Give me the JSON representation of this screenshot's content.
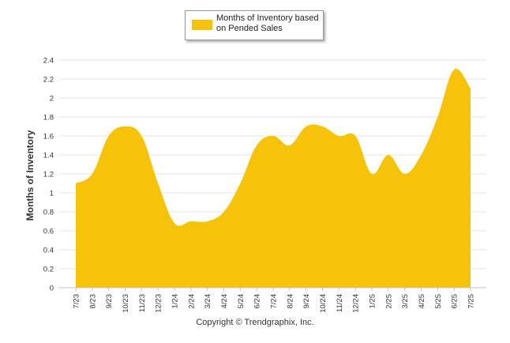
{
  "colors": {
    "series_fill": "#F7C20A",
    "grid": "#E6E6E6",
    "axis_text": "#333333"
  },
  "copyright": "Copyright © Trendgraphix, Inc.",
  "chart_data": {
    "type": "area",
    "title": "",
    "xlabel": "",
    "ylabel": "Months of Inventory",
    "ylim": [
      0,
      2.4
    ],
    "y_ticks": [
      "0",
      "0.2",
      "0.4",
      "0.6",
      "0.8",
      "1",
      "1.2",
      "1.4",
      "1.6",
      "1.8",
      "2",
      "2.2",
      "2.4"
    ],
    "grid": true,
    "legend_position": "top-center",
    "x": [
      "7/23",
      "8/23",
      "9/23",
      "10/23",
      "11/23",
      "12/23",
      "1/24",
      "2/24",
      "3/24",
      "4/24",
      "5/24",
      "6/24",
      "7/24",
      "8/24",
      "9/24",
      "10/24",
      "11/24",
      "12/24",
      "1/25",
      "2/25",
      "3/25",
      "4/25",
      "5/25",
      "6/25",
      "7/25"
    ],
    "series": [
      {
        "name": "Months of Inventory based on Pended Sales",
        "values": [
          1.1,
          1.2,
          1.6,
          1.7,
          1.6,
          1.1,
          0.68,
          0.7,
          0.7,
          0.8,
          1.1,
          1.5,
          1.6,
          1.5,
          1.7,
          1.7,
          1.6,
          1.6,
          1.2,
          1.4,
          1.2,
          1.4,
          1.8,
          2.3,
          2.1
        ]
      }
    ]
  }
}
